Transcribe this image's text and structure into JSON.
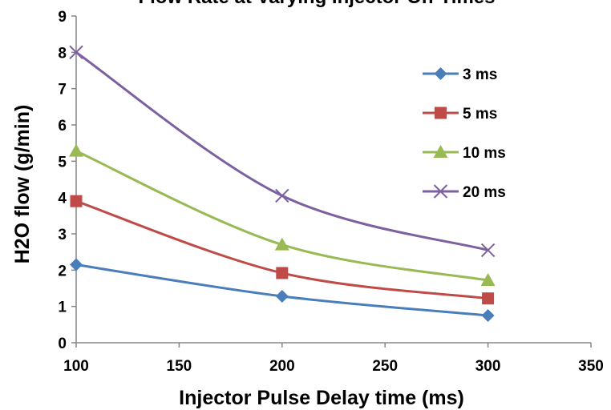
{
  "chart_data": {
    "type": "line",
    "title": "Flow Rate at Varying Injector On-Times",
    "xlabel": "Injector Pulse Delay time (ms)",
    "ylabel": "H2O flow (g/min)",
    "xlim": [
      100,
      350
    ],
    "ylim": [
      0,
      9
    ],
    "x_ticks": [
      "100",
      "150",
      "200",
      "250",
      "300",
      "350"
    ],
    "y_ticks": [
      "0",
      "1",
      "2",
      "3",
      "4",
      "5",
      "6",
      "7",
      "8",
      "9"
    ],
    "x": [
      100,
      200,
      300
    ],
    "grid": false,
    "legend_position": "right",
    "series": [
      {
        "name": "3 ms",
        "values": [
          2.15,
          1.28,
          0.75
        ],
        "color": "#4a7ebb",
        "marker": "diamond"
      },
      {
        "name": "5 ms",
        "values": [
          3.9,
          1.92,
          1.22
        ],
        "color": "#be4b48",
        "marker": "square"
      },
      {
        "name": "10 ms",
        "values": [
          5.28,
          2.7,
          1.72
        ],
        "color": "#98b954",
        "marker": "triangle"
      },
      {
        "name": "20 ms",
        "values": [
          8.0,
          4.05,
          2.55
        ],
        "color": "#7d60a0",
        "marker": "x"
      }
    ]
  }
}
